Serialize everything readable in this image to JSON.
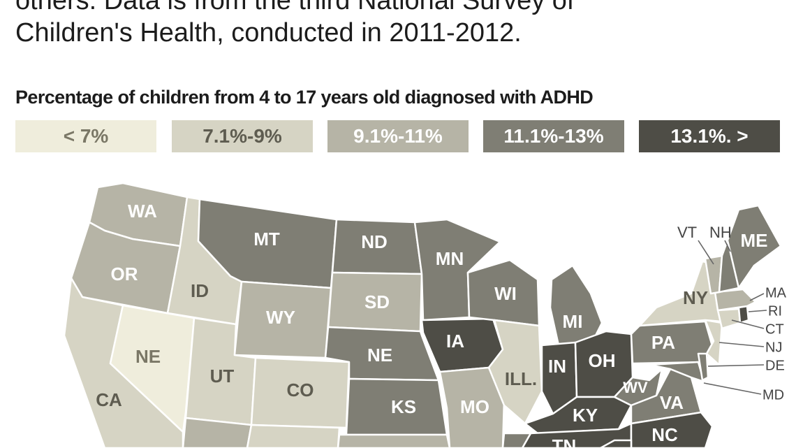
{
  "intro": {
    "line1": "others. Data is from the third National Survey of",
    "line2": "Children's Health, conducted in 2011-2012."
  },
  "legend": {
    "title": "Percentage of children from 4 to 17 years old diagnosed with ADHD",
    "bins": [
      {
        "label": "< 7%",
        "color": "#efeddc",
        "text_color": "#7a7766"
      },
      {
        "label": "7.1%-9%",
        "color": "#d6d4c4",
        "text_color": "#5e5c50"
      },
      {
        "label": "9.1%-11%",
        "color": "#b6b4a6",
        "text_color": "#ffffff"
      },
      {
        "label": "11.1%-13%",
        "color": "#7f7e74",
        "text_color": "#ffffff"
      },
      {
        "label": "13.1%. >",
        "color": "#4e4d46",
        "text_color": "#ffffff"
      }
    ]
  },
  "states": {
    "WA": {
      "label": "WA",
      "bin": 2
    },
    "OR": {
      "label": "OR",
      "bin": 2
    },
    "CA": {
      "label": "CA",
      "bin": 1
    },
    "ID": {
      "label": "ID",
      "bin": 1
    },
    "NE_nevada": {
      "label": "NE",
      "bin": 0
    },
    "UT": {
      "label": "UT",
      "bin": 1
    },
    "MT": {
      "label": "MT",
      "bin": 3
    },
    "WY": {
      "label": "WY",
      "bin": 2
    },
    "CO": {
      "label": "CO",
      "bin": 1
    },
    "ND": {
      "label": "ND",
      "bin": 3
    },
    "SD": {
      "label": "SD",
      "bin": 2
    },
    "NE": {
      "label": "NE",
      "bin": 3
    },
    "KS": {
      "label": "KS",
      "bin": 3
    },
    "MN": {
      "label": "MN",
      "bin": 3
    },
    "IA": {
      "label": "IA",
      "bin": 4
    },
    "MO": {
      "label": "MO",
      "bin": 2
    },
    "WI": {
      "label": "WI",
      "bin": 3
    },
    "ILL": {
      "label": "ILL.",
      "bin": 1
    },
    "MI": {
      "label": "MI",
      "bin": 3
    },
    "IN": {
      "label": "IN",
      "bin": 4
    },
    "OH": {
      "label": "OH",
      "bin": 4
    },
    "KY": {
      "label": "KY",
      "bin": 4
    },
    "TN": {
      "label": "TN",
      "bin": 4
    },
    "WV": {
      "label": "WV",
      "bin": 3
    },
    "VA": {
      "label": "VA",
      "bin": 3
    },
    "NC": {
      "label": "NC",
      "bin": 4
    },
    "PA": {
      "label": "PA",
      "bin": 3
    },
    "NY": {
      "label": "NY",
      "bin": 1
    },
    "VT": {
      "label": "VT",
      "bin": 2
    },
    "NH": {
      "label": "NH",
      "bin": 3
    },
    "ME": {
      "label": "ME",
      "bin": 3
    },
    "MA": {
      "label": "MA",
      "bin": 2
    },
    "RI": {
      "label": "RI",
      "bin": 4
    },
    "CT": {
      "label": "CT",
      "bin": 1
    },
    "NJ": {
      "label": "NJ",
      "bin": 1
    },
    "DE": {
      "label": "DE",
      "bin": 3
    },
    "MD": {
      "label": "MD",
      "bin": 3
    },
    "AZ": {
      "bin": 2
    },
    "NM": {
      "bin": 1
    },
    "OK": {
      "bin": 2
    },
    "AR": {
      "bin": 3
    },
    "SC": {
      "bin": 4
    }
  }
}
